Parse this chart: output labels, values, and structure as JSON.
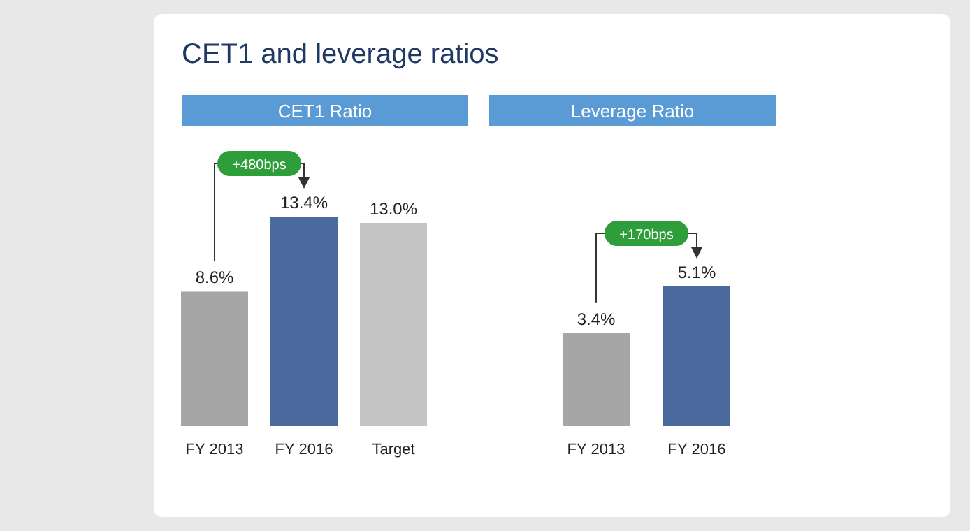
{
  "chart_data": [
    {
      "type": "bar",
      "title": "CET1 Ratio",
      "categories": [
        "FY 2013",
        "FY 2016",
        "Target"
      ],
      "values": [
        8.6,
        13.4,
        13.0
      ],
      "value_labels": [
        "8.6%",
        "13.4%",
        "13.0%"
      ],
      "colors": [
        "#a6a6a6",
        "#4a6a9e",
        "#c4c4c4"
      ],
      "annotations": [
        "CET1 and leverage ratios",
        "+480bps"
      ]
    },
    {
      "type": "bar",
      "title": "Leverage Ratio",
      "categories": [
        "FY 2013",
        "FY 2016"
      ],
      "values": [
        3.4,
        5.1
      ],
      "value_labels": [
        "3.4%",
        "5.1%"
      ],
      "colors": [
        "#a6a6a6",
        "#4a6a9e"
      ],
      "annotations": [
        "+170bps"
      ]
    }
  ]
}
